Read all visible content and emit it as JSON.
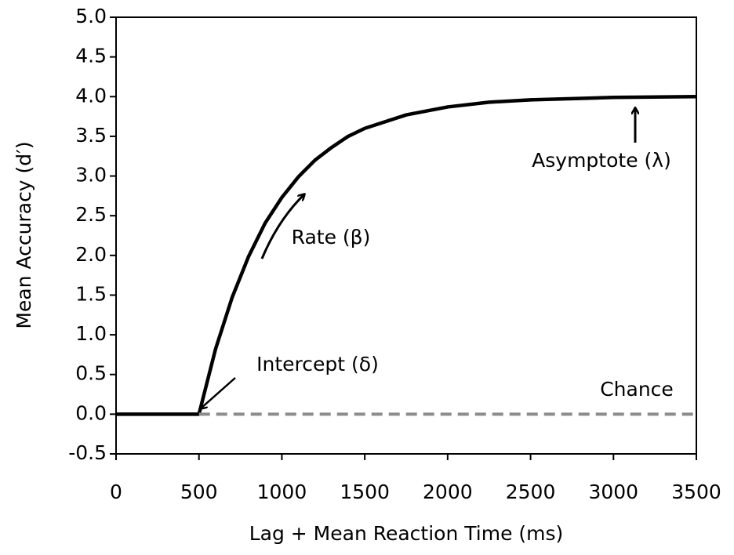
{
  "chart_data": {
    "type": "line",
    "xlabel": "Lag + Mean Reaction Time (ms)",
    "ylabel": "Mean Accuracy (d′)",
    "x": [
      0,
      500,
      600,
      700,
      800,
      900,
      1000,
      1100,
      1200,
      1300,
      1400,
      1500,
      1750,
      2000,
      2250,
      2500,
      3000,
      3500
    ],
    "series": [
      {
        "name": "Mean Accuracy",
        "color": "#000000",
        "dash": false,
        "values": [
          0,
          0,
          0.82,
          1.47,
          1.99,
          2.41,
          2.73,
          2.99,
          3.2,
          3.36,
          3.5,
          3.6,
          3.77,
          3.87,
          3.93,
          3.96,
          3.99,
          4.0
        ]
      },
      {
        "name": "Chance",
        "color": "#8c8c8c",
        "dash": true,
        "values": [
          null,
          0,
          0,
          0,
          0,
          0,
          0,
          0,
          0,
          0,
          0,
          0,
          0,
          0,
          0,
          0,
          0,
          0
        ]
      }
    ],
    "xlim": [
      0,
      3500
    ],
    "xticks": [
      0,
      500,
      1000,
      1500,
      2000,
      2500,
      3000,
      3500
    ],
    "ylim": [
      -0.5,
      5.0
    ],
    "yticks": [
      {
        "value": -0.5,
        "label": "-0.5"
      },
      {
        "value": 0,
        "label": "0.0"
      },
      {
        "value": 0.5,
        "label": "0.5"
      },
      {
        "value": 1,
        "label": "1.0"
      },
      {
        "value": 1.5,
        "label": "1.5"
      },
      {
        "value": 2,
        "label": "2.0"
      },
      {
        "value": 2.5,
        "label": "2.5"
      },
      {
        "value": 3,
        "label": "3.0"
      },
      {
        "value": 3.5,
        "label": "3.5"
      },
      {
        "value": 4,
        "label": "4.0"
      },
      {
        "value": 4.5,
        "label": "4.5"
      },
      {
        "value": 5,
        "label": "5.0"
      }
    ],
    "annotations": [
      "Asymptote (λ)",
      "Rate (β)",
      "Intercept (δ)"
    ],
    "grid": false
  }
}
